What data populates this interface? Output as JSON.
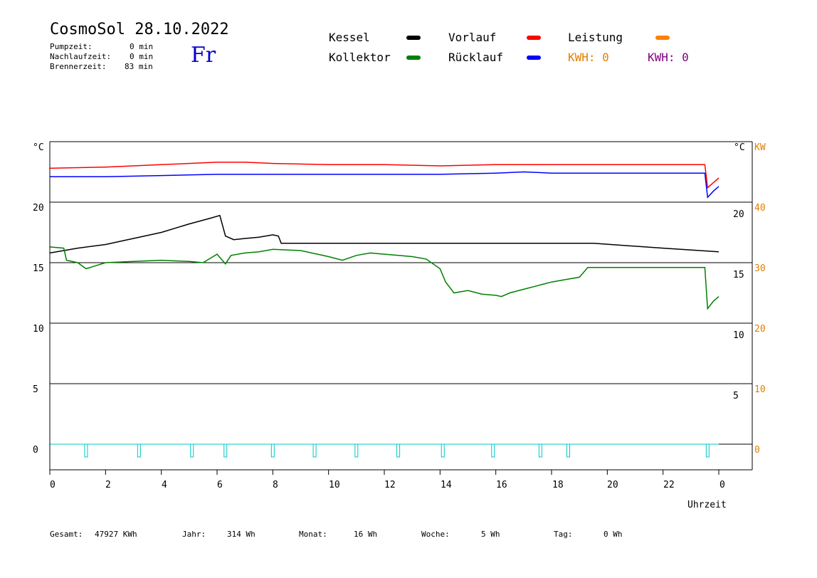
{
  "header": {
    "title": "CosmoSol 28.10.2022",
    "day": "Fr",
    "pumpzeit_label": "Pumpzeit:",
    "pumpzeit_value": "0 min",
    "nachlaufzeit_label": "Nachlaufzeit:",
    "nachlaufzeit_value": "0 min",
    "brennerzeit_label": "Brennerzeit:",
    "brennerzeit_value": "83 min"
  },
  "legend": {
    "kessel": "Kessel",
    "kollektor": "Kollektor",
    "vorlauf": "Vorlauf",
    "ruecklauf": "Rücklauf",
    "leistung": "Leistung",
    "kwh1": "KWH: 0",
    "kwh2": "KWH: 0",
    "colors": {
      "kessel": "#000000",
      "kollektor": "#008000",
      "vorlauf": "#ff0000",
      "ruecklauf": "#0000ff",
      "leistung": "#ff8000",
      "kwh1": "#e08000",
      "kwh2": "#800080",
      "pump": "#00c8c8"
    }
  },
  "axes": {
    "left_unit": "°C",
    "right_unit": "°C",
    "right_kw_unit": "KW",
    "xlabel": "Uhrzeit",
    "y_left_ticks": [
      "20",
      "15",
      "10",
      "5",
      "0"
    ],
    "y_right_ticks": [
      "20",
      "15",
      "10",
      "5"
    ],
    "y_kw_ticks": [
      "40",
      "30",
      "20",
      "10",
      "0"
    ],
    "x_ticks": [
      "0",
      "2",
      "4",
      "6",
      "8",
      "10",
      "12",
      "14",
      "16",
      "18",
      "20",
      "22",
      "0"
    ]
  },
  "footer": {
    "gesamt_label": "Gesamt:",
    "gesamt_value": "47927 KWh",
    "jahr_label": "Jahr:",
    "jahr_value": "314 Wh",
    "monat_label": "Monat:",
    "monat_value": "16 Wh",
    "woche_label": "Woche:",
    "woche_value": "5 Wh",
    "tag_label": "Tag:",
    "tag_value": "0 Wh"
  },
  "chart_data": {
    "type": "line",
    "xlabel": "Uhrzeit",
    "xlim": [
      0,
      24
    ],
    "ylim": [
      -2,
      25
    ],
    "series": [
      {
        "name": "Kessel",
        "x": [
          0,
          0.5,
          1,
          2,
          3,
          4,
          5,
          5.8,
          6.1,
          6.3,
          6.6,
          7,
          7.5,
          8,
          8.2,
          8.3,
          10,
          12,
          14,
          16,
          18,
          19.5,
          22,
          24
        ],
        "y": [
          15.8,
          16,
          16.2,
          16.5,
          17,
          17.5,
          18.2,
          18.7,
          18.9,
          17.2,
          16.9,
          17,
          17.1,
          17.3,
          17.2,
          16.6,
          16.6,
          16.6,
          16.6,
          16.6,
          16.6,
          16.6,
          16.2,
          15.9
        ]
      },
      {
        "name": "Kollektor",
        "x": [
          0,
          0.5,
          0.6,
          1,
          1.3,
          2,
          3,
          4,
          5,
          5.5,
          6,
          6.3,
          6.5,
          7,
          7.5,
          8,
          9,
          10,
          10.5,
          11,
          11.5,
          12,
          12.5,
          13,
          13.5,
          14,
          14.2,
          14.5,
          15,
          15.5,
          16,
          16.2,
          16.5,
          17,
          17.5,
          18,
          18.5,
          19,
          19.3,
          21,
          23,
          23.5,
          23.6,
          23.8,
          24
        ],
        "y": [
          16.3,
          16.2,
          15.2,
          15,
          14.5,
          15,
          15.1,
          15.2,
          15.1,
          15,
          15.7,
          14.9,
          15.6,
          15.8,
          15.9,
          16.1,
          16,
          15.5,
          15.2,
          15.6,
          15.8,
          15.7,
          15.6,
          15.5,
          15.3,
          14.5,
          13.4,
          12.5,
          12.7,
          12.4,
          12.3,
          12.2,
          12.5,
          12.8,
          13.1,
          13.4,
          13.6,
          13.8,
          14.6,
          14.6,
          14.6,
          14.6,
          11.2,
          11.8,
          12.2
        ]
      },
      {
        "name": "Vorlauf",
        "x": [
          0,
          2,
          4,
          6,
          7,
          8,
          10,
          12,
          14,
          16,
          18,
          20,
          22,
          23.5,
          23.6,
          23.8,
          24
        ],
        "y": [
          22.8,
          22.9,
          23.1,
          23.3,
          23.3,
          23.2,
          23.1,
          23.1,
          23,
          23.1,
          23.1,
          23.1,
          23.1,
          23.1,
          21.2,
          21.6,
          22.0
        ]
      },
      {
        "name": "Rücklauf",
        "x": [
          0,
          2,
          4,
          6,
          8,
          10,
          12,
          14,
          16,
          17,
          18,
          20,
          22,
          23.5,
          23.6,
          23.8,
          24
        ],
        "y": [
          22.1,
          22.1,
          22.2,
          22.3,
          22.3,
          22.3,
          22.3,
          22.3,
          22.4,
          22.5,
          22.4,
          22.4,
          22.4,
          22.4,
          20.4,
          20.9,
          21.3
        ]
      }
    ],
    "pump_pulses_hours": [
      1.3,
      3.2,
      5.1,
      6.3,
      8.0,
      9.5,
      11.0,
      12.5,
      14.1,
      15.9,
      17.6,
      18.6,
      23.6
    ]
  }
}
